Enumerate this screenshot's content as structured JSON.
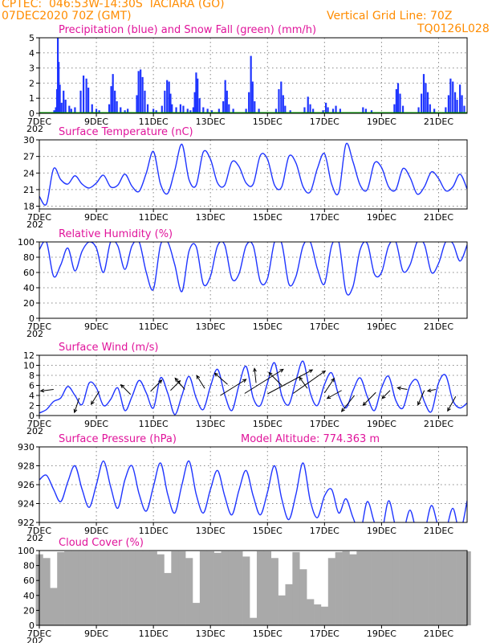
{
  "header": {
    "station": "CPTEC:  046:53W-14:30S  IACIARA (GO)",
    "datetime": "07DEC2020 70Z (GMT)",
    "grid_note": "Vertical Grid Line: 70Z",
    "code": "TQ0126L028"
  },
  "x_axis": {
    "ticks": [
      "7DEC",
      "9DEC",
      "11DEC",
      "13DEC",
      "15DEC",
      "17DEC",
      "19DEC",
      "21DEC"
    ],
    "year_stub": "202"
  },
  "colors": {
    "header": "#ff8c00",
    "titles": "#e0149b",
    "precip": "#1f35ff",
    "snow": "#00a000",
    "line": "#1f35ff",
    "cloud": "#a9a9a9",
    "wind_arrow": "#000000"
  },
  "chart_data": [
    {
      "type": "bar",
      "title": "Precipitation (blue) and Snow Fall (green) (mm/h)",
      "xlim": [
        0,
        15
      ],
      "ylim": [
        0,
        5
      ],
      "yticks": [
        0,
        1,
        2,
        3,
        4,
        5
      ],
      "grid": true,
      "note": "x in days after 7DEC 00Z",
      "events": [
        [
          0.52,
          0.2
        ],
        [
          0.58,
          0.4
        ],
        [
          0.62,
          1.6
        ],
        [
          0.65,
          5.0
        ],
        [
          0.68,
          3.4
        ],
        [
          0.72,
          1.9
        ],
        [
          0.78,
          0.7
        ],
        [
          0.85,
          1.5
        ],
        [
          0.92,
          0.9
        ],
        [
          1.05,
          0.5
        ],
        [
          1.12,
          0.3
        ],
        [
          1.25,
          0.4
        ],
        [
          1.45,
          1.5
        ],
        [
          1.55,
          2.5
        ],
        [
          1.65,
          2.3
        ],
        [
          1.72,
          1.7
        ],
        [
          1.85,
          0.6
        ],
        [
          2.0,
          0.3
        ],
        [
          2.1,
          0.2
        ],
        [
          2.45,
          0.6
        ],
        [
          2.52,
          1.8
        ],
        [
          2.58,
          2.6
        ],
        [
          2.65,
          1.5
        ],
        [
          2.72,
          0.8
        ],
        [
          2.85,
          0.4
        ],
        [
          3.0,
          0.2
        ],
        [
          3.1,
          0.3
        ],
        [
          3.42,
          1.2
        ],
        [
          3.48,
          2.8
        ],
        [
          3.55,
          2.9
        ],
        [
          3.62,
          2.4
        ],
        [
          3.7,
          1.5
        ],
        [
          3.8,
          0.6
        ],
        [
          4.0,
          0.3
        ],
        [
          4.1,
          0.2
        ],
        [
          4.3,
          0.5
        ],
        [
          4.4,
          1.5
        ],
        [
          4.48,
          2.2
        ],
        [
          4.55,
          2.1
        ],
        [
          4.6,
          1.3
        ],
        [
          4.65,
          0.6
        ],
        [
          4.8,
          0.4
        ],
        [
          4.95,
          0.6
        ],
        [
          5.05,
          0.5
        ],
        [
          5.2,
          0.3
        ],
        [
          5.3,
          0.2
        ],
        [
          5.4,
          0.4
        ],
        [
          5.45,
          1.4
        ],
        [
          5.5,
          2.7
        ],
        [
          5.55,
          2.3
        ],
        [
          5.62,
          1.0
        ],
        [
          5.75,
          0.4
        ],
        [
          5.9,
          0.3
        ],
        [
          6.05,
          0.2
        ],
        [
          6.3,
          0.3
        ],
        [
          6.45,
          0.8
        ],
        [
          6.52,
          2.2
        ],
        [
          6.58,
          1.5
        ],
        [
          6.65,
          0.6
        ],
        [
          6.8,
          0.3
        ],
        [
          7.25,
          0.3
        ],
        [
          7.35,
          1.4
        ],
        [
          7.42,
          3.8
        ],
        [
          7.48,
          2.1
        ],
        [
          7.55,
          0.8
        ],
        [
          7.7,
          0.3
        ],
        [
          8.3,
          0.3
        ],
        [
          8.4,
          1.6
        ],
        [
          8.48,
          2.1
        ],
        [
          8.55,
          1.2
        ],
        [
          8.62,
          0.5
        ],
        [
          8.8,
          0.2
        ],
        [
          9.3,
          0.4
        ],
        [
          9.42,
          1.1
        ],
        [
          9.5,
          0.6
        ],
        [
          9.6,
          0.3
        ],
        [
          9.95,
          0.2
        ],
        [
          10.05,
          0.7
        ],
        [
          10.12,
          0.4
        ],
        [
          10.3,
          0.3
        ],
        [
          10.4,
          0.5
        ],
        [
          10.55,
          0.3
        ],
        [
          11.35,
          0.4
        ],
        [
          11.45,
          0.3
        ],
        [
          11.65,
          0.2
        ],
        [
          12.45,
          0.6
        ],
        [
          12.52,
          1.6
        ],
        [
          12.58,
          2.0
        ],
        [
          12.65,
          1.3
        ],
        [
          12.75,
          0.5
        ],
        [
          13.3,
          0.4
        ],
        [
          13.4,
          1.3
        ],
        [
          13.48,
          2.6
        ],
        [
          13.55,
          2.0
        ],
        [
          13.62,
          1.4
        ],
        [
          13.7,
          0.6
        ],
        [
          13.85,
          0.3
        ],
        [
          14.25,
          0.4
        ],
        [
          14.35,
          1.2
        ],
        [
          14.42,
          2.3
        ],
        [
          14.5,
          2.1
        ],
        [
          14.58,
          1.4
        ],
        [
          14.65,
          0.9
        ],
        [
          14.75,
          1.9
        ],
        [
          14.82,
          1.2
        ],
        [
          14.9,
          0.5
        ]
      ]
    },
    {
      "type": "line",
      "title": "Surface Temperature (nC)",
      "xlim": [
        0,
        15
      ],
      "ylim": [
        17.5,
        30
      ],
      "yticks": [
        18,
        21,
        24,
        27,
        30
      ],
      "grid": true,
      "x": [
        0,
        0.25,
        0.5,
        0.75,
        1,
        1.25,
        1.5,
        1.75,
        2,
        2.25,
        2.5,
        2.75,
        3,
        3.25,
        3.5,
        3.75,
        4,
        4.25,
        4.5,
        4.75,
        5,
        5.25,
        5.5,
        5.75,
        6,
        6.25,
        6.5,
        6.75,
        7,
        7.25,
        7.5,
        7.75,
        8,
        8.25,
        8.5,
        8.75,
        9,
        9.25,
        9.5,
        9.75,
        10,
        10.25,
        10.5,
        10.75,
        11,
        11.25,
        11.5,
        11.75,
        12,
        12.25,
        12.5,
        12.75,
        13,
        13.25,
        13.5,
        13.75,
        14,
        14.25,
        14.5,
        14.75,
        15
      ],
      "values": [
        19.8,
        18.4,
        24.8,
        22.8,
        22.0,
        23.5,
        22.0,
        21.3,
        22.2,
        23.6,
        21.5,
        21.8,
        23.8,
        21.6,
        20.7,
        24.0,
        27.9,
        22.0,
        20.3,
        24.5,
        29.2,
        22.8,
        21.8,
        27.8,
        26.5,
        22.2,
        21.8,
        26.0,
        25.2,
        22.2,
        22.0,
        27.2,
        26.5,
        21.8,
        21.5,
        27.0,
        25.8,
        21.5,
        20.6,
        24.8,
        27.5,
        22.0,
        20.5,
        29.2,
        26.0,
        21.8,
        21.0,
        25.8,
        25.0,
        21.5,
        21.0,
        24.8,
        23.2,
        20.2,
        21.5,
        24.2,
        23.0,
        20.8,
        21.5,
        23.8,
        21.1
      ]
    },
    {
      "type": "line",
      "title": "Relative Humidity (%)",
      "xlim": [
        0,
        15
      ],
      "ylim": [
        0,
        100
      ],
      "yticks": [
        0,
        20,
        40,
        60,
        80,
        100
      ],
      "grid": true,
      "x": [
        0,
        0.25,
        0.5,
        0.75,
        1,
        1.25,
        1.5,
        1.75,
        2,
        2.25,
        2.5,
        2.75,
        3,
        3.25,
        3.5,
        3.75,
        4,
        4.25,
        4.5,
        4.75,
        5,
        5.25,
        5.5,
        5.75,
        6,
        6.25,
        6.5,
        6.75,
        7,
        7.25,
        7.5,
        7.75,
        8,
        8.25,
        8.5,
        8.75,
        9,
        9.25,
        9.5,
        9.75,
        10,
        10.25,
        10.5,
        10.75,
        11,
        11.25,
        11.5,
        11.75,
        12,
        12.25,
        12.5,
        12.75,
        13,
        13.25,
        13.5,
        13.75,
        14,
        14.25,
        14.5,
        14.75,
        15
      ],
      "values": [
        90,
        100,
        55,
        70,
        92,
        62,
        88,
        100,
        92,
        60,
        100,
        95,
        64,
        95,
        100,
        60,
        38,
        96,
        100,
        70,
        35,
        88,
        94,
        45,
        55,
        95,
        96,
        52,
        58,
        95,
        95,
        48,
        52,
        100,
        98,
        45,
        55,
        95,
        100,
        65,
        45,
        95,
        100,
        35,
        42,
        90,
        98,
        58,
        60,
        95,
        100,
        62,
        70,
        100,
        97,
        60,
        72,
        100,
        98,
        75,
        96
      ]
    },
    {
      "type": "line",
      "title": "Surface Wind (m/s)",
      "xlim": [
        0,
        15
      ],
      "ylim": [
        0,
        12
      ],
      "yticks": [
        0,
        2,
        4,
        6,
        8,
        10,
        12
      ],
      "grid": true,
      "x": [
        0,
        0.25,
        0.5,
        0.75,
        1,
        1.25,
        1.5,
        1.75,
        2,
        2.25,
        2.5,
        2.75,
        3,
        3.25,
        3.5,
        3.75,
        4,
        4.25,
        4.5,
        4.75,
        5,
        5.25,
        5.5,
        5.75,
        6,
        6.25,
        6.5,
        6.75,
        7,
        7.25,
        7.5,
        7.75,
        8,
        8.25,
        8.5,
        8.75,
        9,
        9.25,
        9.5,
        9.75,
        10,
        10.25,
        10.5,
        10.75,
        11,
        11.25,
        11.5,
        11.75,
        12,
        12.25,
        12.5,
        12.75,
        13,
        13.25,
        13.5,
        13.75,
        14,
        14.25,
        14.5,
        14.75,
        15
      ],
      "values": [
        0.5,
        1.2,
        2.8,
        3.5,
        5.8,
        4.0,
        2.2,
        6.5,
        5.5,
        2.0,
        3.2,
        5.5,
        1.0,
        3.8,
        7.0,
        4.5,
        1.5,
        7.5,
        4.5,
        0.2,
        4.0,
        7.8,
        3.5,
        1.2,
        5.8,
        9.2,
        4.2,
        1.0,
        6.0,
        9.8,
        3.5,
        2.0,
        6.5,
        10.5,
        4.0,
        2.2,
        7.0,
        10.8,
        4.5,
        2.0,
        6.2,
        8.5,
        4.0,
        1.5,
        5.0,
        7.5,
        3.8,
        1.0,
        5.5,
        7.8,
        3.0,
        1.5,
        6.0,
        7.0,
        2.8,
        0.8,
        6.5,
        8.0,
        3.0,
        1.5,
        2.5
      ],
      "arrows": [
        [
          0.5,
          5.2,
          -0.8,
          -0.1
        ],
        [
          1.4,
          3.5,
          -0.3,
          -0.9
        ],
        [
          2.1,
          4.8,
          -0.5,
          -0.8
        ],
        [
          3.2,
          4.2,
          -0.6,
          0.6
        ],
        [
          3.9,
          4.8,
          0.7,
          0.7
        ],
        [
          4.6,
          5.0,
          0.6,
          0.6
        ],
        [
          5.1,
          5.2,
          -0.6,
          0.7
        ],
        [
          5.8,
          5.4,
          -0.5,
          0.8
        ],
        [
          6.35,
          4.0,
          1.6,
          1.0
        ],
        [
          6.6,
          6.2,
          -0.8,
          0.7
        ],
        [
          7.2,
          4.4,
          2.4,
          1.5
        ],
        [
          7.6,
          6.5,
          -0.1,
          0.9
        ],
        [
          8.0,
          4.3,
          2.8,
          1.5
        ],
        [
          8.5,
          6.0,
          -0.8,
          0.8
        ],
        [
          8.9,
          4.4,
          2.0,
          1.4
        ],
        [
          9.4,
          5.4,
          -0.5,
          0.7
        ],
        [
          10.0,
          4.5,
          0.6,
          0.9
        ],
        [
          10.6,
          5.0,
          -0.9,
          -0.5
        ],
        [
          11.05,
          4.0,
          -0.8,
          -1.0
        ],
        [
          11.8,
          4.6,
          -0.8,
          -0.8
        ],
        [
          12.3,
          5.0,
          -0.5,
          -0.5
        ],
        [
          12.9,
          5.2,
          -0.6,
          0.1
        ],
        [
          13.5,
          5.0,
          -0.4,
          -0.9
        ],
        [
          13.9,
          5.2,
          -0.5,
          -0.1
        ],
        [
          14.6,
          3.8,
          -0.5,
          -0.9
        ]
      ]
    },
    {
      "type": "line",
      "title": "Surface Pressure (hPa)",
      "subtitle": "Model Altitude: 774.363 m",
      "xlim": [
        0,
        15
      ],
      "ylim": [
        922,
        930
      ],
      "yticks": [
        922,
        924,
        926,
        928,
        930
      ],
      "grid": true,
      "x": [
        0,
        0.25,
        0.5,
        0.75,
        1,
        1.25,
        1.5,
        1.75,
        2,
        2.25,
        2.5,
        2.75,
        3,
        3.25,
        3.5,
        3.75,
        4,
        4.25,
        4.5,
        4.75,
        5,
        5.25,
        5.5,
        5.75,
        6,
        6.25,
        6.5,
        6.75,
        7,
        7.25,
        7.5,
        7.75,
        8,
        8.25,
        8.5,
        8.75,
        9,
        9.25,
        9.5,
        9.75,
        10,
        10.25,
        10.5,
        10.75,
        11,
        11.25,
        11.5,
        11.75,
        12,
        12.25,
        12.5,
        12.75,
        13,
        13.25,
        13.5,
        13.75,
        14,
        14.25,
        14.5,
        14.75,
        15
      ],
      "values": [
        926.5,
        927.0,
        925.5,
        924.2,
        926.3,
        928.0,
        925.5,
        923.6,
        926.0,
        928.5,
        925.8,
        923.5,
        926.5,
        928.0,
        925.0,
        923.2,
        925.8,
        928.3,
        925.0,
        923.0,
        926.0,
        928.5,
        925.0,
        923.0,
        925.5,
        927.5,
        924.8,
        922.8,
        925.4,
        927.5,
        924.8,
        922.8,
        925.2,
        928.0,
        924.5,
        922.3,
        925.0,
        928.3,
        924.3,
        922.5,
        924.8,
        925.5,
        923.0,
        924.5,
        922.5,
        921.0,
        924.2,
        922.0,
        921.0,
        924.3,
        921.5,
        921.0,
        923.3,
        920.8,
        921.0,
        923.8,
        921.5,
        921.2,
        923.5,
        921.0,
        924.3
      ]
    },
    {
      "type": "bar",
      "title": "Cloud Cover (%)",
      "xlim": [
        0,
        15
      ],
      "ylim": [
        0,
        100
      ],
      "yticks": [
        0,
        20,
        40,
        60,
        80,
        100
      ],
      "grid": false,
      "bar_x": [
        0,
        0.25,
        0.5,
        0.75,
        1,
        1.25,
        1.5,
        1.75,
        2,
        2.25,
        2.5,
        2.75,
        3,
        3.25,
        3.5,
        3.75,
        4,
        4.25,
        4.5,
        4.75,
        5,
        5.25,
        5.5,
        5.75,
        6,
        6.25,
        6.5,
        6.75,
        7,
        7.25,
        7.5,
        7.75,
        8,
        8.25,
        8.5,
        8.75,
        9,
        9.25,
        9.5,
        9.75,
        10,
        10.25,
        10.5,
        10.75,
        11,
        11.25,
        11.5,
        11.75,
        12,
        12.25,
        12.5,
        12.75,
        13,
        13.25,
        13.5,
        13.75,
        14,
        14.25,
        14.5,
        14.75,
        15
      ],
      "values": [
        95,
        90,
        50,
        98,
        99,
        99,
        99,
        99,
        99,
        99,
        99,
        99,
        99,
        99,
        99,
        99,
        99,
        95,
        70,
        99,
        99,
        90,
        30,
        99,
        99,
        97,
        99,
        99,
        99,
        92,
        10,
        99,
        99,
        90,
        40,
        55,
        98,
        75,
        35,
        28,
        25,
        90,
        98,
        99,
        95,
        99,
        99,
        99,
        99,
        99,
        99,
        99,
        99,
        99,
        99,
        99,
        99,
        99,
        99,
        99,
        99
      ]
    }
  ]
}
